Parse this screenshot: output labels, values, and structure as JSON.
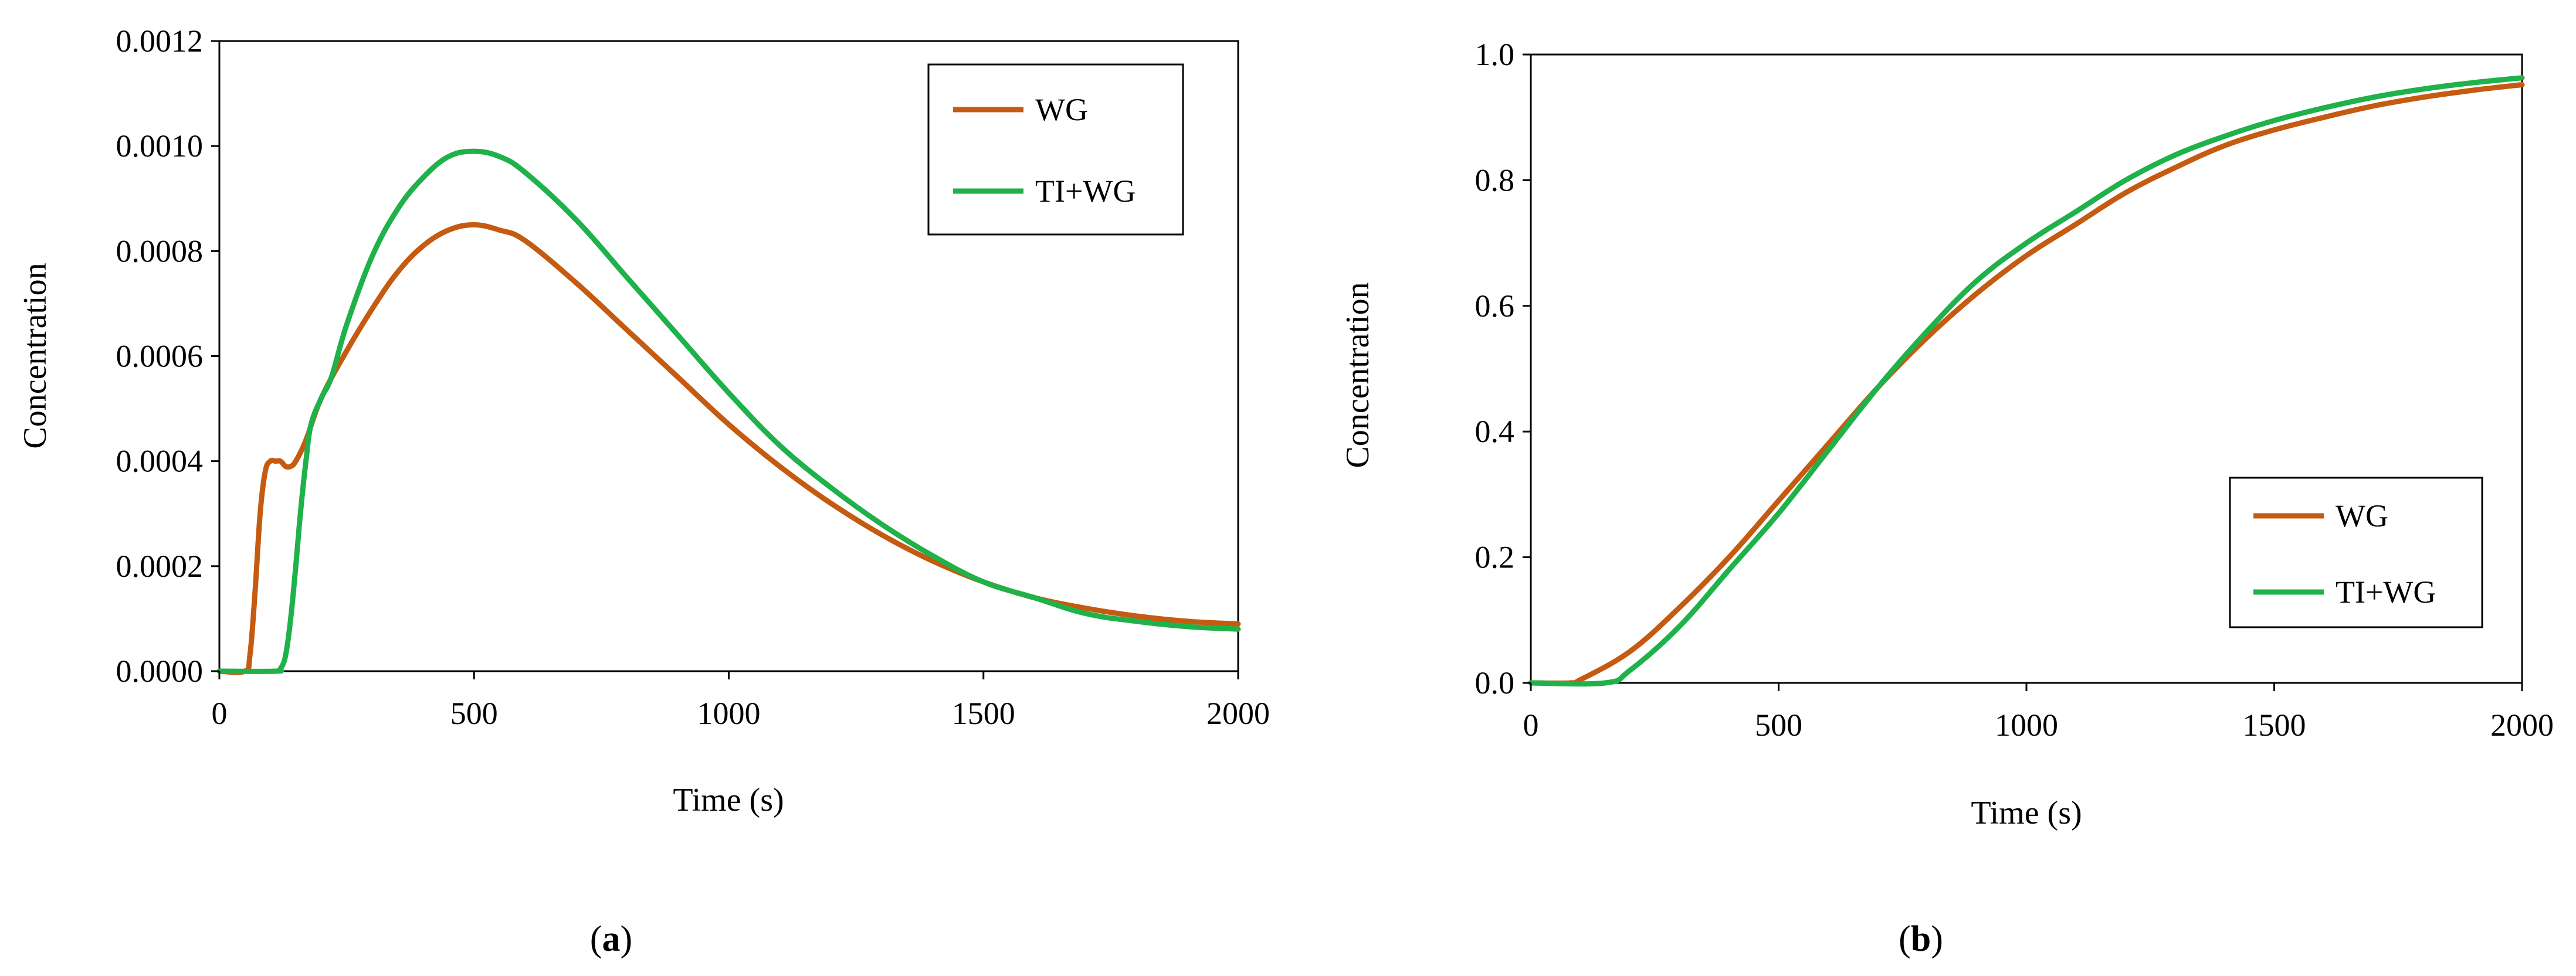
{
  "colors": {
    "wg": "#C55A11",
    "tiwg": "#1FB14A",
    "axis": "#000000"
  },
  "chart_data": [
    {
      "type": "line",
      "caption_letter": "a",
      "xlabel": "Time (s)",
      "ylabel": "Concentration",
      "xlim": [
        0,
        2000
      ],
      "ylim": [
        0,
        0.0012
      ],
      "xticks": [
        "0",
        "500",
        "1000",
        "1500",
        "2000"
      ],
      "yticks": [
        "0.0000",
        "0.0002",
        "0.0004",
        "0.0006",
        "0.0008",
        "0.0010",
        "0.0012"
      ],
      "legend_position": "top-right",
      "series": [
        {
          "name": "WG",
          "color": "#C55A11",
          "x": [
            0,
            50,
            60,
            70,
            80,
            90,
            100,
            110,
            120,
            130,
            140,
            150,
            170,
            200,
            250,
            300,
            350,
            400,
            450,
            500,
            550,
            600,
            700,
            800,
            900,
            1000,
            1100,
            1200,
            1300,
            1400,
            1500,
            1600,
            1700,
            1800,
            1900,
            2000
          ],
          "y": [
            0,
            0,
            3e-05,
            0.00015,
            0.0003,
            0.00038,
            0.0004,
            0.0004,
            0.0004,
            0.00039,
            0.00039,
            0.0004,
            0.00044,
            0.00052,
            0.00061,
            0.00069,
            0.00076,
            0.00081,
            0.00084,
            0.00085,
            0.00084,
            0.00082,
            0.00074,
            0.00065,
            0.00056,
            0.00047,
            0.00039,
            0.00032,
            0.00026,
            0.00021,
            0.00017,
            0.00014,
            0.00012,
            0.000105,
            9.5e-05,
            9e-05
          ]
        },
        {
          "name": "TI+WG",
          "color": "#1FB14A",
          "x": [
            0,
            110,
            120,
            130,
            140,
            150,
            160,
            170,
            180,
            200,
            220,
            250,
            300,
            350,
            400,
            450,
            500,
            550,
            600,
            700,
            800,
            900,
            1000,
            1100,
            1200,
            1300,
            1400,
            1500,
            1600,
            1700,
            1800,
            1900,
            2000
          ],
          "y": [
            0,
            0,
            5e-06,
            3e-05,
            0.0001,
            0.0002,
            0.00031,
            0.0004,
            0.00047,
            0.00052,
            0.00056,
            0.00066,
            0.00079,
            0.00088,
            0.00094,
            0.00098,
            0.00099,
            0.00098,
            0.00095,
            0.00086,
            0.00075,
            0.00064,
            0.00053,
            0.00043,
            0.00035,
            0.00028,
            0.00022,
            0.00017,
            0.00014,
            0.00011,
            9.5e-05,
            8.5e-05,
            8e-05
          ]
        }
      ]
    },
    {
      "type": "line",
      "caption_letter": "b",
      "xlabel": "Time (s)",
      "ylabel": "Concentration",
      "xlim": [
        0,
        2000
      ],
      "ylim": [
        0,
        1.0
      ],
      "xticks": [
        "0",
        "500",
        "1000",
        "1500",
        "2000"
      ],
      "yticks": [
        "0.0",
        "0.2",
        "0.4",
        "0.6",
        "0.8",
        "1.0"
      ],
      "legend_position": "center-right",
      "series": [
        {
          "name": "WG",
          "color": "#C55A11",
          "x": [
            0,
            80,
            100,
            200,
            300,
            400,
            500,
            600,
            700,
            800,
            900,
            1000,
            1100,
            1200,
            1300,
            1400,
            1500,
            1600,
            1700,
            1800,
            1900,
            2000
          ],
          "y": [
            0,
            0,
            0.005,
            0.05,
            0.12,
            0.2,
            0.29,
            0.38,
            0.47,
            0.55,
            0.62,
            0.68,
            0.73,
            0.78,
            0.82,
            0.855,
            0.88,
            0.9,
            0.918,
            0.932,
            0.943,
            0.952
          ]
        },
        {
          "name": "TI+WG",
          "color": "#1FB14A",
          "x": [
            0,
            150,
            200,
            300,
            400,
            500,
            600,
            700,
            800,
            900,
            1000,
            1100,
            1200,
            1300,
            1400,
            1500,
            1600,
            1700,
            1800,
            1900,
            2000
          ],
          "y": [
            0,
            0,
            0.02,
            0.09,
            0.18,
            0.27,
            0.37,
            0.47,
            0.56,
            0.64,
            0.7,
            0.75,
            0.8,
            0.84,
            0.87,
            0.895,
            0.915,
            0.932,
            0.945,
            0.955,
            0.963
          ]
        }
      ]
    }
  ]
}
